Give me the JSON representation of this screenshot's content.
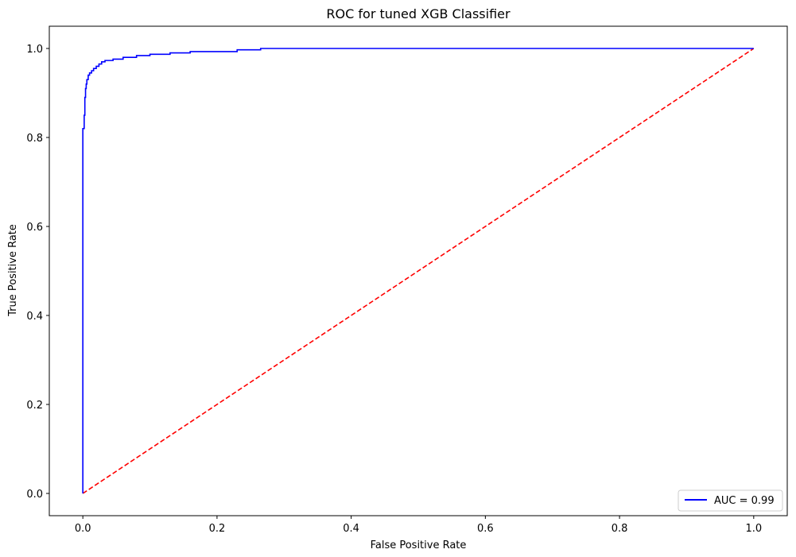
{
  "chart_data": {
    "type": "line",
    "title": "ROC for tuned XGB Classifier",
    "xlabel": "False Positive Rate",
    "ylabel": "True Positive Rate",
    "xlim": [
      -0.05,
      1.05
    ],
    "ylim": [
      -0.05,
      1.05
    ],
    "xticks": [
      0.0,
      0.2,
      0.4,
      0.6,
      0.8,
      1.0
    ],
    "yticks": [
      0.0,
      0.2,
      0.4,
      0.6,
      0.8,
      1.0
    ],
    "xtick_labels": [
      "0.0",
      "0.2",
      "0.4",
      "0.6",
      "0.8",
      "1.0"
    ],
    "ytick_labels": [
      "0.0",
      "0.2",
      "0.4",
      "0.6",
      "0.8",
      "1.0"
    ],
    "grid": false,
    "legend_position": "lower-right",
    "series": [
      {
        "name": "AUC = 0.99",
        "color": "#0000ff",
        "style": "solid",
        "x": [
          0.0,
          0.0,
          0.002,
          0.002,
          0.003,
          0.003,
          0.004,
          0.004,
          0.005,
          0.005,
          0.006,
          0.006,
          0.008,
          0.008,
          0.01,
          0.01,
          0.013,
          0.013,
          0.016,
          0.016,
          0.02,
          0.02,
          0.024,
          0.024,
          0.028,
          0.028,
          0.033,
          0.033,
          0.045,
          0.045,
          0.06,
          0.06,
          0.08,
          0.08,
          0.1,
          0.1,
          0.13,
          0.13,
          0.16,
          0.16,
          0.23,
          0.23,
          0.265,
          0.265,
          1.0
        ],
        "y": [
          0.0,
          0.82,
          0.82,
          0.85,
          0.85,
          0.89,
          0.89,
          0.91,
          0.91,
          0.92,
          0.92,
          0.93,
          0.93,
          0.94,
          0.94,
          0.945,
          0.945,
          0.95,
          0.95,
          0.955,
          0.955,
          0.96,
          0.96,
          0.965,
          0.965,
          0.97,
          0.97,
          0.973,
          0.973,
          0.976,
          0.976,
          0.98,
          0.98,
          0.984,
          0.984,
          0.987,
          0.987,
          0.99,
          0.99,
          0.993,
          0.993,
          0.997,
          0.997,
          1.0,
          1.0
        ]
      },
      {
        "name": "",
        "color": "#ff0000",
        "style": "dashed",
        "x": [
          0.0,
          1.0
        ],
        "y": [
          0.0,
          1.0
        ]
      }
    ]
  }
}
